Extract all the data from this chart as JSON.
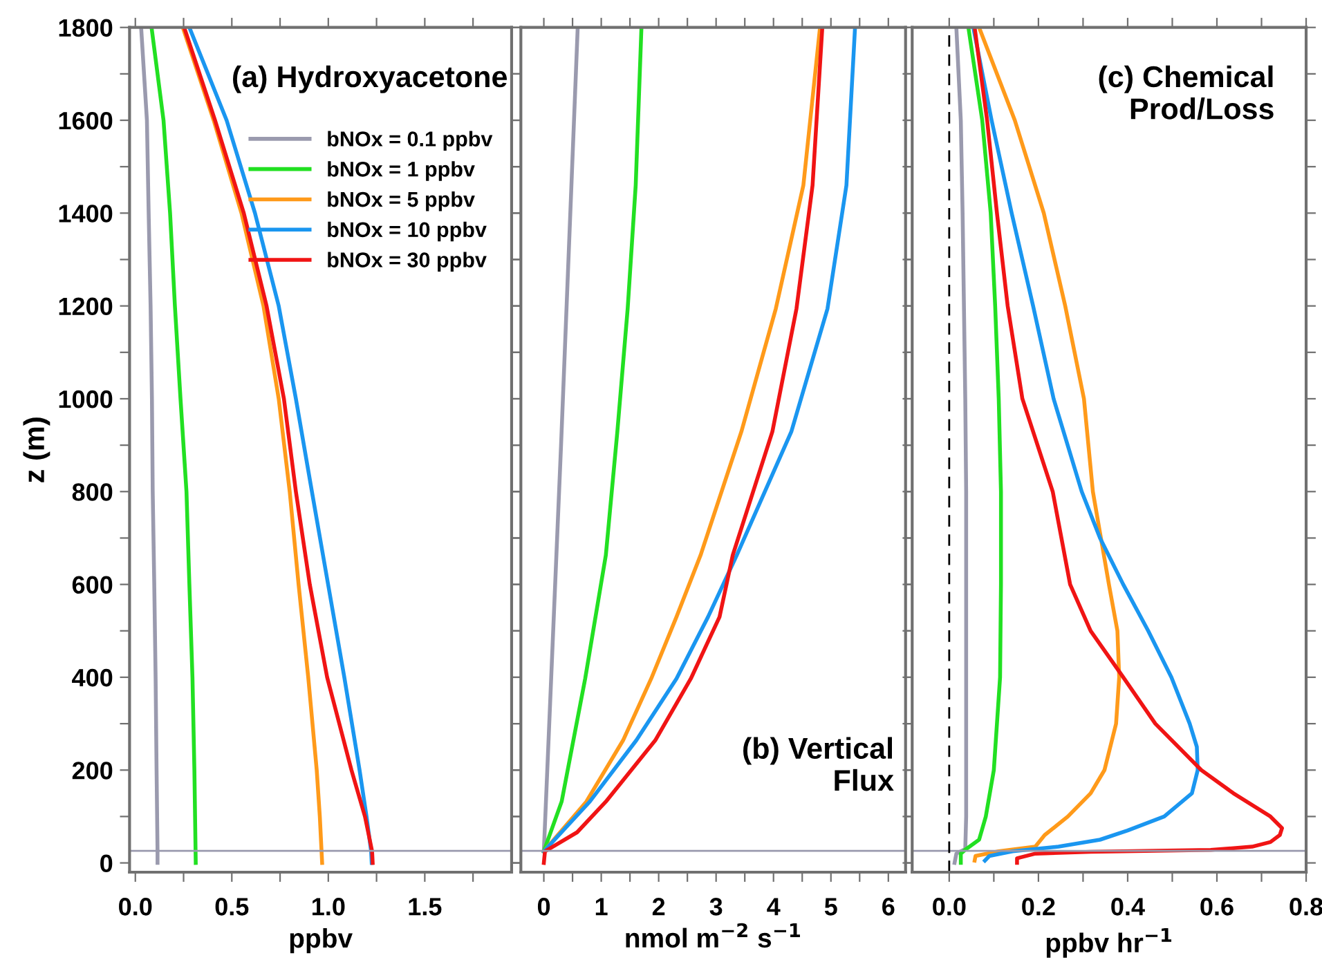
{
  "chart_data": [
    {
      "type": "line",
      "ylabel": "z (m)",
      "xlabel": "ppbv",
      "annotations": [
        "(a) Hydroxyacetone"
      ],
      "legend": "top right",
      "grid": false,
      "xlim": [
        -0.03,
        1.95
      ],
      "ylim": [
        -20,
        1800
      ],
      "xticks": [
        {
          "value": 0,
          "label": "0.0"
        },
        {
          "value": 0.25,
          "label": null
        },
        {
          "value": 0.5,
          "label": "0.5"
        },
        {
          "value": 0.75,
          "label": null
        },
        {
          "value": 1,
          "label": "1.0"
        },
        {
          "value": 1.25,
          "label": null
        },
        {
          "value": 1.5,
          "label": "1.5"
        },
        {
          "value": 1.75,
          "label": null
        }
      ],
      "yticks": [
        0,
        {
          "value": 100,
          "label": null
        },
        200,
        {
          "value": 300,
          "label": null
        },
        400,
        {
          "value": 500,
          "label": null
        },
        600,
        {
          "value": 700,
          "label": null
        },
        800,
        {
          "value": 900,
          "label": null
        },
        1000,
        {
          "value": 1100,
          "label": null
        },
        1200,
        {
          "value": 1300,
          "label": null
        },
        1400,
        {
          "value": 1500,
          "label": null
        },
        1600,
        {
          "value": 1700,
          "label": null
        },
        1800
      ],
      "ref_lines": [
        {
          "axis": "y",
          "value": 26,
          "label": null,
          "color": "#9a9aae"
        }
      ],
      "series": [
        {
          "name": "bNOx = 0.1 ppbv",
          "color": "#9a9aae",
          "x": [
            0.115,
            0.115,
            0.11,
            0.105,
            0.098,
            0.09,
            0.086,
            0.079,
            0.069,
            0.06,
            0.03
          ],
          "values": [
            0,
            25,
            200,
            400,
            600,
            800,
            1000,
            1200,
            1400,
            1600,
            1800
          ]
        },
        {
          "name": "bNOx = 1 ppbv",
          "color": "#22e022",
          "x": [
            0.313,
            0.306,
            0.296,
            0.28,
            0.265,
            0.234,
            0.205,
            0.18,
            0.146,
            0.084
          ],
          "values": [
            0,
            200,
            400,
            600,
            800,
            1000,
            1200,
            1400,
            1600,
            1800
          ]
        },
        {
          "name": "bNOx = 5 ppbv",
          "color": "#ff9a1a",
          "x": [
            0.968,
            0.956,
            0.94,
            0.896,
            0.846,
            0.8,
            0.743,
            0.664,
            0.55,
            0.406,
            0.246
          ],
          "values": [
            0,
            100,
            200,
            400,
            600,
            800,
            1000,
            1200,
            1400,
            1600,
            1800
          ]
        },
        {
          "name": "bNOx = 10 ppbv",
          "color": "#1a96f0",
          "x": [
            1.225,
            1.222,
            1.198,
            1.162,
            1.083,
            0.999,
            0.915,
            0.832,
            0.743,
            0.62,
            0.473,
            0.28
          ],
          "values": [
            0,
            25,
            100,
            200,
            400,
            600,
            800,
            1000,
            1200,
            1400,
            1600,
            1800
          ]
        },
        {
          "name": "bNOx = 30 ppbv",
          "color": "#f01414",
          "x": [
            1.23,
            1.227,
            1.19,
            1.12,
            0.994,
            0.904,
            0.832,
            0.77,
            0.68,
            0.562,
            0.413,
            0.253
          ],
          "values": [
            0,
            25,
            100,
            200,
            400,
            600,
            800,
            1000,
            1200,
            1400,
            1600,
            1800
          ]
        }
      ]
    },
    {
      "type": "line",
      "xlabel": "nmol m$^{−2}$ s$^{−1}$",
      "annotations": [
        "(b) Vertical\nFlux"
      ],
      "grid": false,
      "tick_labels": "x",
      "xlim": [
        -0.4,
        6.3
      ],
      "ylim": [
        -20,
        1800
      ],
      "xticks": [
        0,
        {
          "value": 0.5,
          "label": null
        },
        1,
        {
          "value": 1.5,
          "label": null
        },
        2,
        {
          "value": 2.5,
          "label": null
        },
        3,
        {
          "value": 3.5,
          "label": null
        },
        4,
        {
          "value": 4.5,
          "label": null
        },
        5,
        {
          "value": 5.5,
          "label": null
        },
        6
      ],
      "yticks": [
        0,
        {
          "value": 100,
          "label": null
        },
        200,
        {
          "value": 300,
          "label": null
        },
        400,
        {
          "value": 500,
          "label": null
        },
        600,
        {
          "value": 700,
          "label": null
        },
        800,
        {
          "value": 900,
          "label": null
        },
        1000,
        {
          "value": 1100,
          "label": null
        },
        1200,
        {
          "value": 1300,
          "label": null
        },
        1400,
        {
          "value": 1500,
          "label": null
        },
        1600,
        {
          "value": 1700,
          "label": null
        },
        1800
      ],
      "ref_lines": [
        {
          "axis": "y",
          "value": 26,
          "label": null,
          "color": "#9a9aae"
        }
      ],
      "series": [
        {
          "color": "#9a9aae",
          "x": [
            0,
            0.3,
            0.59
          ],
          "values": [
            25,
            900,
            1800
          ]
        },
        {
          "color": "#22e022",
          "x": [
            0,
            0.31,
            0.72,
            1.08,
            1.28,
            1.46,
            1.6,
            1.7
          ],
          "values": [
            25,
            132,
            397,
            663,
            929,
            1194,
            1460,
            1800
          ]
        },
        {
          "color": "#ff9a1a",
          "x": [
            0,
            0.74,
            1.38,
            1.87,
            2.31,
            2.73,
            3.44,
            4.04,
            4.52,
            4.81
          ],
          "values": [
            25,
            132,
            264,
            397,
            530,
            663,
            929,
            1194,
            1460,
            1800
          ]
        },
        {
          "color": "#1a96f0",
          "x": [
            0,
            0.8,
            1.61,
            2.31,
            2.86,
            3.36,
            4.31,
            4.94,
            5.27,
            5.42
          ],
          "values": [
            25,
            132,
            264,
            397,
            530,
            663,
            929,
            1194,
            1460,
            1800
          ]
        },
        {
          "color": "#f01414",
          "x": [
            0,
            0.02,
            0.58,
            1.08,
            1.94,
            2.56,
            3.06,
            3.29,
            3.98,
            4.4,
            4.68,
            4.85
          ],
          "values": [
            0,
            25,
            66,
            132,
            264,
            397,
            530,
            663,
            929,
            1194,
            1460,
            1800
          ]
        }
      ]
    },
    {
      "type": "line",
      "xlabel": "ppbv hr$^{−1}$",
      "annotations": [
        "(c) Chemical\nProd/Loss"
      ],
      "grid": false,
      "tick_labels": "x",
      "xlim": [
        -0.083,
        0.8
      ],
      "ylim": [
        -20,
        1800
      ],
      "xticks": [
        {
          "value": 0,
          "label": "0.0"
        },
        {
          "value": 0.1,
          "label": null
        },
        0.2,
        {
          "value": 0.3,
          "label": null
        },
        0.4,
        {
          "value": 0.5,
          "label": null
        },
        0.6,
        {
          "value": 0.7,
          "label": null
        },
        0.8
      ],
      "yticks": [
        0,
        {
          "value": 100,
          "label": null
        },
        200,
        {
          "value": 300,
          "label": null
        },
        400,
        {
          "value": 500,
          "label": null
        },
        600,
        {
          "value": 700,
          "label": null
        },
        800,
        {
          "value": 900,
          "label": null
        },
        1000,
        {
          "value": 1100,
          "label": null
        },
        1200,
        {
          "value": 1300,
          "label": null
        },
        1400,
        {
          "value": 1500,
          "label": null
        },
        1600,
        {
          "value": 1700,
          "label": null
        },
        1800
      ],
      "ref_lines": [
        {
          "axis": "y",
          "value": 26,
          "label": null,
          "color": "#9a9aae"
        },
        {
          "axis": "x",
          "value": 0,
          "label": null,
          "color": "#000000",
          "line_style": "dashed"
        }
      ],
      "series": [
        {
          "color": "#9a9aae",
          "x": [
            0.012,
            0.016,
            0.036,
            0.038,
            0.038,
            0.038,
            0.036,
            0.03,
            0.026,
            0.016
          ],
          "values": [
            0,
            20,
            30,
            100,
            400,
            800,
            1000,
            1400,
            1600,
            1800
          ]
        },
        {
          "color": "#22e022",
          "x": [
            0.026,
            0.026,
            0.038,
            0.067,
            0.082,
            0.1,
            0.114,
            0.116,
            0.116,
            0.111,
            0.103,
            0.093,
            0.074,
            0.043
          ],
          "values": [
            0,
            20,
            30,
            50,
            100,
            200,
            400,
            600,
            800,
            1000,
            1200,
            1400,
            1600,
            1800
          ]
        },
        {
          "color": "#ff9a1a",
          "x": [
            0.057,
            0.059,
            0.111,
            0.193,
            0.214,
            0.266,
            0.317,
            0.348,
            0.374,
            0.381,
            0.377,
            0.358,
            0.322,
            0.302,
            0.26,
            0.212,
            0.147,
            0.067
          ],
          "values": [
            5,
            15,
            25,
            35,
            60,
            100,
            150,
            200,
            300,
            400,
            500,
            600,
            800,
            1000,
            1200,
            1400,
            1600,
            1800
          ]
        },
        {
          "color": "#1a96f0",
          "x": [
            0.08,
            0.09,
            0.142,
            0.245,
            0.338,
            0.4,
            0.482,
            0.544,
            0.557,
            0.555,
            0.539,
            0.498,
            0.446,
            0.39,
            0.338,
            0.297,
            0.234,
            0.188,
            0.14,
            0.095,
            0.054
          ],
          "values": [
            5,
            15,
            25,
            35,
            50,
            70,
            100,
            150,
            200,
            250,
            300,
            400,
            500,
            600,
            700,
            800,
            1000,
            1200,
            1400,
            1600,
            1800
          ]
        },
        {
          "color": "#f01414",
          "x": [
            0.152,
            0.152,
            0.193,
            0.317,
            0.586,
            0.679,
            0.72,
            0.741,
            0.746,
            0.72,
            0.637,
            0.565,
            0.462,
            0.39,
            0.317,
            0.271,
            0.232,
            0.164,
            0.131,
            0.107,
            0.085,
            0.057
          ],
          "values": [
            0,
            10,
            20,
            24,
            28,
            35,
            45,
            60,
            75,
            100,
            150,
            200,
            300,
            400,
            500,
            600,
            800,
            1000,
            1200,
            1400,
            1600,
            1800
          ]
        }
      ]
    }
  ]
}
